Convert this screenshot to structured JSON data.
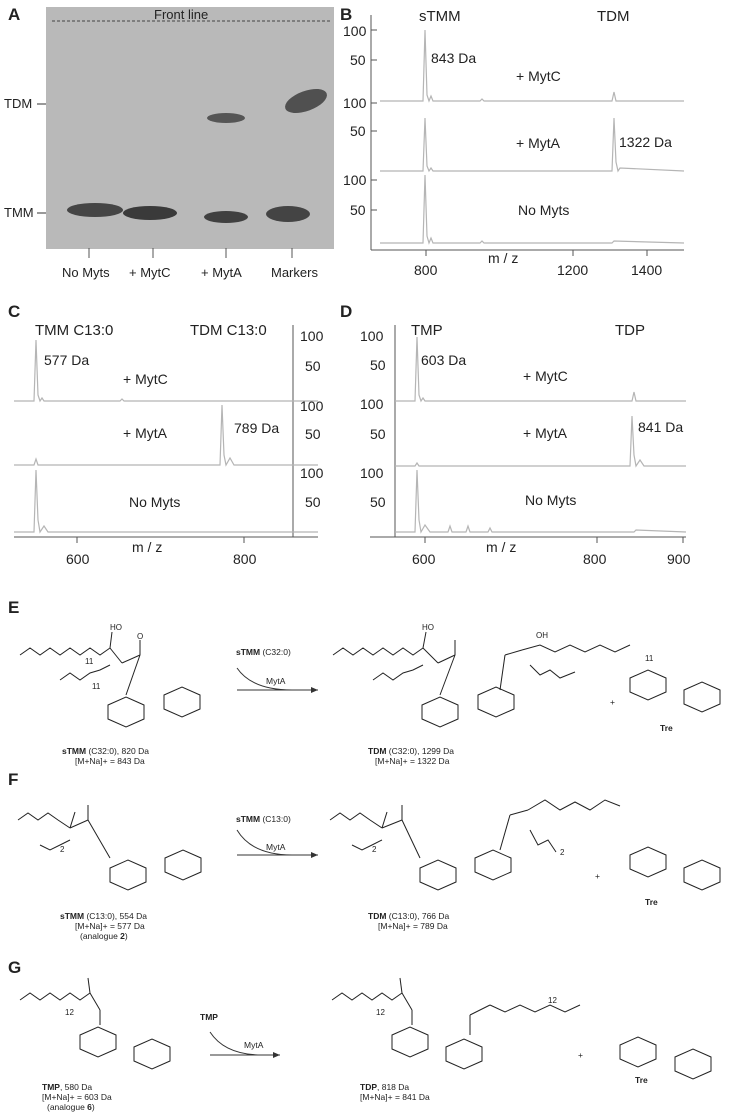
{
  "panels": {
    "a": {
      "label": "A",
      "front_line": "Front line",
      "y_labels": [
        "TDM",
        "TMM"
      ],
      "lanes": [
        "No Myts",
        "+ MytC",
        "+ MytA",
        "Markers"
      ]
    },
    "b": {
      "label": "B",
      "peak_titles": [
        "sTMM",
        "TDM"
      ],
      "conditions": [
        "+ MytC",
        "+ MytA",
        "No Myts"
      ],
      "annotations": [
        "843 Da",
        "1322 Da"
      ],
      "yticks": [
        "100",
        "50"
      ],
      "xticks": [
        "800",
        "1200",
        "1400"
      ],
      "xlabel": "m / z"
    },
    "c": {
      "label": "C",
      "peak_titles": [
        "TMM C13:0",
        "TDM C13:0"
      ],
      "conditions": [
        "+ MytC",
        "+ MytA",
        "No Myts"
      ],
      "annotations": [
        "577 Da",
        "789 Da"
      ],
      "yticks": [
        "100",
        "50"
      ],
      "xticks": [
        "600",
        "800"
      ],
      "xlabel": "m / z"
    },
    "d": {
      "label": "D",
      "peak_titles": [
        "TMP",
        "TDP"
      ],
      "conditions": [
        "+ MytC",
        "+ MytA",
        "No Myts"
      ],
      "annotations": [
        "603 Da",
        "841 Da"
      ],
      "yticks": [
        "100",
        "50"
      ],
      "xticks": [
        "600",
        "800",
        "900"
      ],
      "xlabel": "m / z"
    },
    "e": {
      "label": "E",
      "reagent_bold": "sTMM",
      "reagent_rest": " (C32:0)",
      "enzyme": "MytA",
      "left_bold": "sTMM",
      "left_rest": " (C32:0), 820 Da",
      "left_line2": "[M+Na]+ = 843 Da",
      "prod_bold": "TDM",
      "prod_rest": " (C32:0), 1299 Da",
      "prod_line2": "[M+Na]+ = 1322 Da",
      "tre": "Tre",
      "plus": "+"
    },
    "f": {
      "label": "F",
      "reagent_bold": "sTMM",
      "reagent_rest": " (C13:0)",
      "enzyme": "MytA",
      "left_bold": "sTMM",
      "left_rest": " (C13:0), 554 Da",
      "left_line2": "[M+Na]+ = 577 Da",
      "left_line3_pre": "(analogue ",
      "left_line3_num": "2",
      "left_line3_post": ")",
      "prod_bold": "TDM",
      "prod_rest": " (C13:0), 766 Da",
      "prod_line2": "[M+Na]+ = 789 Da",
      "tre": "Tre",
      "plus": "+"
    },
    "g": {
      "label": "G",
      "reagent_bold": "TMP",
      "enzyme": "MytA",
      "left_bold": "TMP",
      "left_rest": ", 580 Da",
      "left_line2": "[M+Na]+ = 603 Da",
      "left_line3_pre": "(analogue ",
      "left_line3_num": "6",
      "left_line3_post": ")",
      "prod_bold": "TDP",
      "prod_rest": ", 818 Da",
      "prod_line2": "[M+Na]+ = 841 Da",
      "tre": "Tre",
      "plus": "+"
    }
  },
  "chem_labels": {
    "ho": "HO",
    "oh": "OH",
    "o": "O",
    "n11": "11",
    "n2": "2",
    "n12": "12"
  },
  "colors": {
    "trace": "#b5b5b5",
    "axis": "#555555",
    "tlc_bg": "#b9b9b9",
    "spot": "#3a3a3a"
  }
}
